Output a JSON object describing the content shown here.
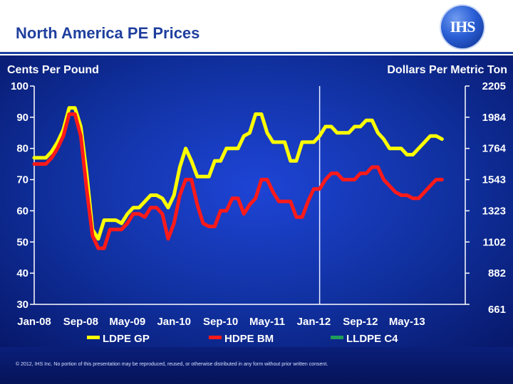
{
  "header": {
    "title": "North America PE Prices",
    "logo_text": "IHS"
  },
  "footer": {
    "copyright": "© 2012, IHS Inc. No portion of this presentation may be reproduced, reused, or otherwise distributed in any form without prior written consent."
  },
  "colors": {
    "title": "#1f3f9e",
    "ldpe_gp": "#ffff00",
    "hdpe_bm": "#ff1a1a",
    "lldpe_c4": "#1f9e5a",
    "text": "#ffffff"
  },
  "chart_data": {
    "type": "line",
    "title": "North America PE Prices",
    "ylabel_left": "Cents Per Pound",
    "ylabel_right": "Dollars Per Metric Ton",
    "ylim": [
      30,
      100
    ],
    "xlim": [
      0,
      74
    ],
    "y_ticks": [
      "100",
      "90",
      "80",
      "70",
      "60",
      "50",
      "40",
      "30"
    ],
    "y_ticks_right": [
      "2205",
      "1984",
      "1764",
      "1543",
      "1323",
      "1102",
      "882",
      "661"
    ],
    "x_ticks": [
      "Jan-08",
      "Sep-08",
      "May-09",
      "Jan-10",
      "Sep-10",
      "May-11",
      "Jan-12",
      "Sep-12",
      "May-13"
    ],
    "x_tick_positions": [
      0,
      8,
      16,
      24,
      32,
      40,
      48,
      56,
      64
    ],
    "vertical_marker": 49,
    "series": [
      {
        "name": "LDPE GP",
        "color": "#ffff00",
        "x": [
          0,
          2,
          3,
          4,
          5,
          6,
          7,
          8,
          9,
          10,
          11,
          12,
          13,
          14,
          15,
          16,
          17,
          18,
          19,
          20,
          21,
          22,
          23,
          24,
          25,
          26,
          27,
          28,
          29,
          30,
          31,
          32,
          33,
          34,
          35,
          36,
          37,
          38,
          39,
          40,
          41,
          42,
          43,
          44,
          45,
          46,
          47,
          48,
          49,
          50,
          51,
          52,
          53,
          54,
          55,
          56,
          57,
          58,
          59,
          60,
          61,
          62,
          63,
          64,
          65,
          66,
          67,
          68,
          69,
          70
        ],
        "values": [
          77,
          77,
          79,
          82,
          86,
          93,
          93,
          87,
          72,
          54,
          51,
          57,
          57,
          57,
          56,
          59,
          61,
          61,
          63,
          65,
          65,
          64,
          61,
          65,
          74,
          80,
          76,
          71,
          71,
          71,
          76,
          76,
          80,
          80,
          80,
          84,
          85,
          91,
          91,
          85,
          82,
          82,
          82,
          76,
          76,
          82,
          82,
          82,
          84,
          87,
          87,
          85,
          85,
          85,
          87,
          87,
          89,
          89,
          85,
          83,
          80,
          80,
          80,
          78,
          78,
          80,
          82,
          84,
          84,
          83
        ]
      },
      {
        "name": "HDPE BM",
        "color": "#ff1a1a",
        "x": [
          0,
          2,
          3,
          4,
          5,
          6,
          7,
          8,
          9,
          10,
          11,
          12,
          13,
          14,
          15,
          16,
          17,
          18,
          19,
          20,
          21,
          22,
          23,
          24,
          25,
          26,
          27,
          28,
          29,
          30,
          31,
          32,
          33,
          34,
          35,
          36,
          37,
          38,
          39,
          40,
          41,
          42,
          43,
          44,
          45,
          46,
          47,
          48,
          49,
          50,
          51,
          52,
          53,
          54,
          55,
          56,
          57,
          58,
          59,
          60,
          61,
          62,
          63,
          64,
          65,
          66,
          67,
          68,
          69,
          70
        ],
        "values": [
          75,
          75,
          77,
          80,
          84,
          91,
          91,
          84,
          67,
          52,
          48,
          48,
          54,
          54,
          54,
          56,
          59,
          59,
          58,
          61,
          61,
          59,
          51,
          56,
          65,
          70,
          70,
          62,
          56,
          55,
          55,
          60,
          60,
          64,
          64,
          59,
          62,
          64,
          70,
          70,
          66,
          63,
          63,
          63,
          58,
          58,
          63,
          67,
          67,
          70,
          72,
          72,
          70,
          70,
          70,
          72,
          72,
          74,
          74,
          70,
          68,
          66,
          65,
          65,
          64,
          64,
          66,
          68,
          70,
          70
        ]
      },
      {
        "name": "LLDPE C4",
        "color": "#1f9e5a",
        "x": [],
        "values": []
      }
    ],
    "legend": [
      "LDPE GP",
      "HDPE BM",
      "LLDPE C4"
    ],
    "legend_position": "bottom"
  }
}
